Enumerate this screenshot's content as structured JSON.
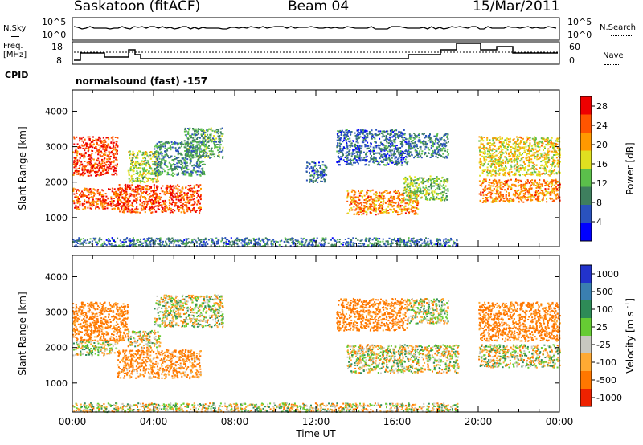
{
  "header": {
    "station": "Saskatoon (fitACF)",
    "beam": "Beam 04",
    "date": "15/Mar/2011"
  },
  "status_panel": {
    "nsky_label": "N.Sky",
    "nsearch_label": "N.Search",
    "freq_label_1": "Freq.",
    "freq_label_2": "[MHz]",
    "nave_label": "Nave",
    "cpid_label": "CPID",
    "cpid_value": "normalsound (fast) -157",
    "nsky_ticks": [
      "10^5",
      "10^0"
    ],
    "nsearch_ticks": [
      "10^5",
      "10^0"
    ],
    "freq_ticks": [
      "18",
      "8"
    ],
    "nave_ticks": [
      "60",
      "0"
    ]
  },
  "chart_data": [
    {
      "type": "heatmap",
      "panel": "power",
      "ylabel": "Slant Range [km]",
      "xlabel": "",
      "ylim": [
        180,
        4600
      ],
      "xlim": [
        0,
        24
      ],
      "yticks": [
        "1000",
        "2000",
        "3000",
        "4000"
      ],
      "xticks": [
        "00:00",
        "04:00",
        "08:00",
        "12:00",
        "16:00",
        "20:00",
        "00:00"
      ],
      "colorbar": {
        "label": "Power [dB]",
        "ticks": [
          "4",
          "8",
          "12",
          "16",
          "20",
          "24",
          "28"
        ],
        "range": [
          0,
          30
        ],
        "colors": [
          "#0000ff",
          "#2a52be",
          "#3e7f5e",
          "#5bbf4b",
          "#e0e020",
          "#ff9900",
          "#ff5500",
          "#ee0000"
        ]
      },
      "regions": [
        {
          "t0": 0.0,
          "t1": 2.7,
          "r0": 1250,
          "r1": 1850,
          "v": 24
        },
        {
          "t0": 0.0,
          "t1": 2.2,
          "r0": 2200,
          "r1": 3300,
          "v": 26
        },
        {
          "t0": 2.2,
          "t1": 6.3,
          "r0": 1150,
          "r1": 1950,
          "v": 25
        },
        {
          "t0": 2.7,
          "t1": 4.2,
          "r0": 2000,
          "r1": 2900,
          "v": 15
        },
        {
          "t0": 4.0,
          "t1": 6.5,
          "r0": 2200,
          "r1": 3200,
          "v": 10
        },
        {
          "t0": 5.5,
          "t1": 7.4,
          "r0": 2700,
          "r1": 3550,
          "v": 11
        },
        {
          "t0": 11.5,
          "t1": 12.5,
          "r0": 2000,
          "r1": 2600,
          "v": 7
        },
        {
          "t0": 13.0,
          "t1": 16.5,
          "r0": 2500,
          "r1": 3500,
          "v": 7
        },
        {
          "t0": 13.5,
          "t1": 17.0,
          "r0": 1100,
          "r1": 1800,
          "v": 22
        },
        {
          "t0": 16.5,
          "t1": 18.5,
          "r0": 2700,
          "r1": 3400,
          "v": 9
        },
        {
          "t0": 16.3,
          "t1": 18.5,
          "r0": 1500,
          "r1": 2200,
          "v": 14
        },
        {
          "t0": 20.0,
          "t1": 24.0,
          "r0": 1450,
          "r1": 2100,
          "v": 22
        },
        {
          "t0": 20.0,
          "t1": 24.0,
          "r0": 2200,
          "r1": 3300,
          "v": 18
        },
        {
          "t0": 0.0,
          "t1": 19.0,
          "r0": 200,
          "r1": 450,
          "v": 8
        }
      ]
    },
    {
      "type": "heatmap",
      "panel": "velocity",
      "ylabel": "Slant Range [km]",
      "xlabel": "Time UT",
      "ylim": [
        180,
        4600
      ],
      "xlim": [
        0,
        24
      ],
      "yticks": [
        "1000",
        "2000",
        "3000",
        "4000"
      ],
      "xticks": [
        "00:00",
        "04:00",
        "08:00",
        "12:00",
        "16:00",
        "20:00",
        "00:00"
      ],
      "colorbar": {
        "label": "Velocity [m s",
        "label_sup": "-1",
        "label_end": "]",
        "ticks": [
          "1000",
          "500",
          "100",
          "25",
          "-25",
          "-100",
          "-500",
          "-1000"
        ],
        "colors": [
          "#2233cc",
          "#3a7fb0",
          "#2e8b57",
          "#66cc33",
          "#c8c8c0",
          "#ffaa33",
          "#ff7700",
          "#ee2200"
        ]
      },
      "regions": [
        {
          "t0": 0.0,
          "t1": 2.7,
          "r0": 2200,
          "r1": 3300,
          "v": -200
        },
        {
          "t0": 0.0,
          "t1": 2.2,
          "r0": 1800,
          "r1": 2200,
          "v": 10
        },
        {
          "t0": 2.2,
          "t1": 6.3,
          "r0": 1150,
          "r1": 1950,
          "v": -150
        },
        {
          "t0": 2.7,
          "t1": 4.3,
          "r0": 2000,
          "r1": 2500,
          "v": 0
        },
        {
          "t0": 4.0,
          "t1": 7.4,
          "r0": 2600,
          "r1": 3500,
          "v": 5
        },
        {
          "t0": 13.0,
          "t1": 16.5,
          "r0": 2500,
          "r1": 3400,
          "v": -200
        },
        {
          "t0": 13.5,
          "t1": 19.0,
          "r0": 1300,
          "r1": 2100,
          "v": 0
        },
        {
          "t0": 16.5,
          "t1": 18.5,
          "r0": 2700,
          "r1": 3400,
          "v": 5
        },
        {
          "t0": 20.0,
          "t1": 24.0,
          "r0": 1450,
          "r1": 2100,
          "v": 0
        },
        {
          "t0": 20.0,
          "t1": 24.0,
          "r0": 2200,
          "r1": 3300,
          "v": -200
        },
        {
          "t0": 0.0,
          "t1": 19.0,
          "r0": 200,
          "r1": 450,
          "v": 0
        }
      ]
    }
  ]
}
